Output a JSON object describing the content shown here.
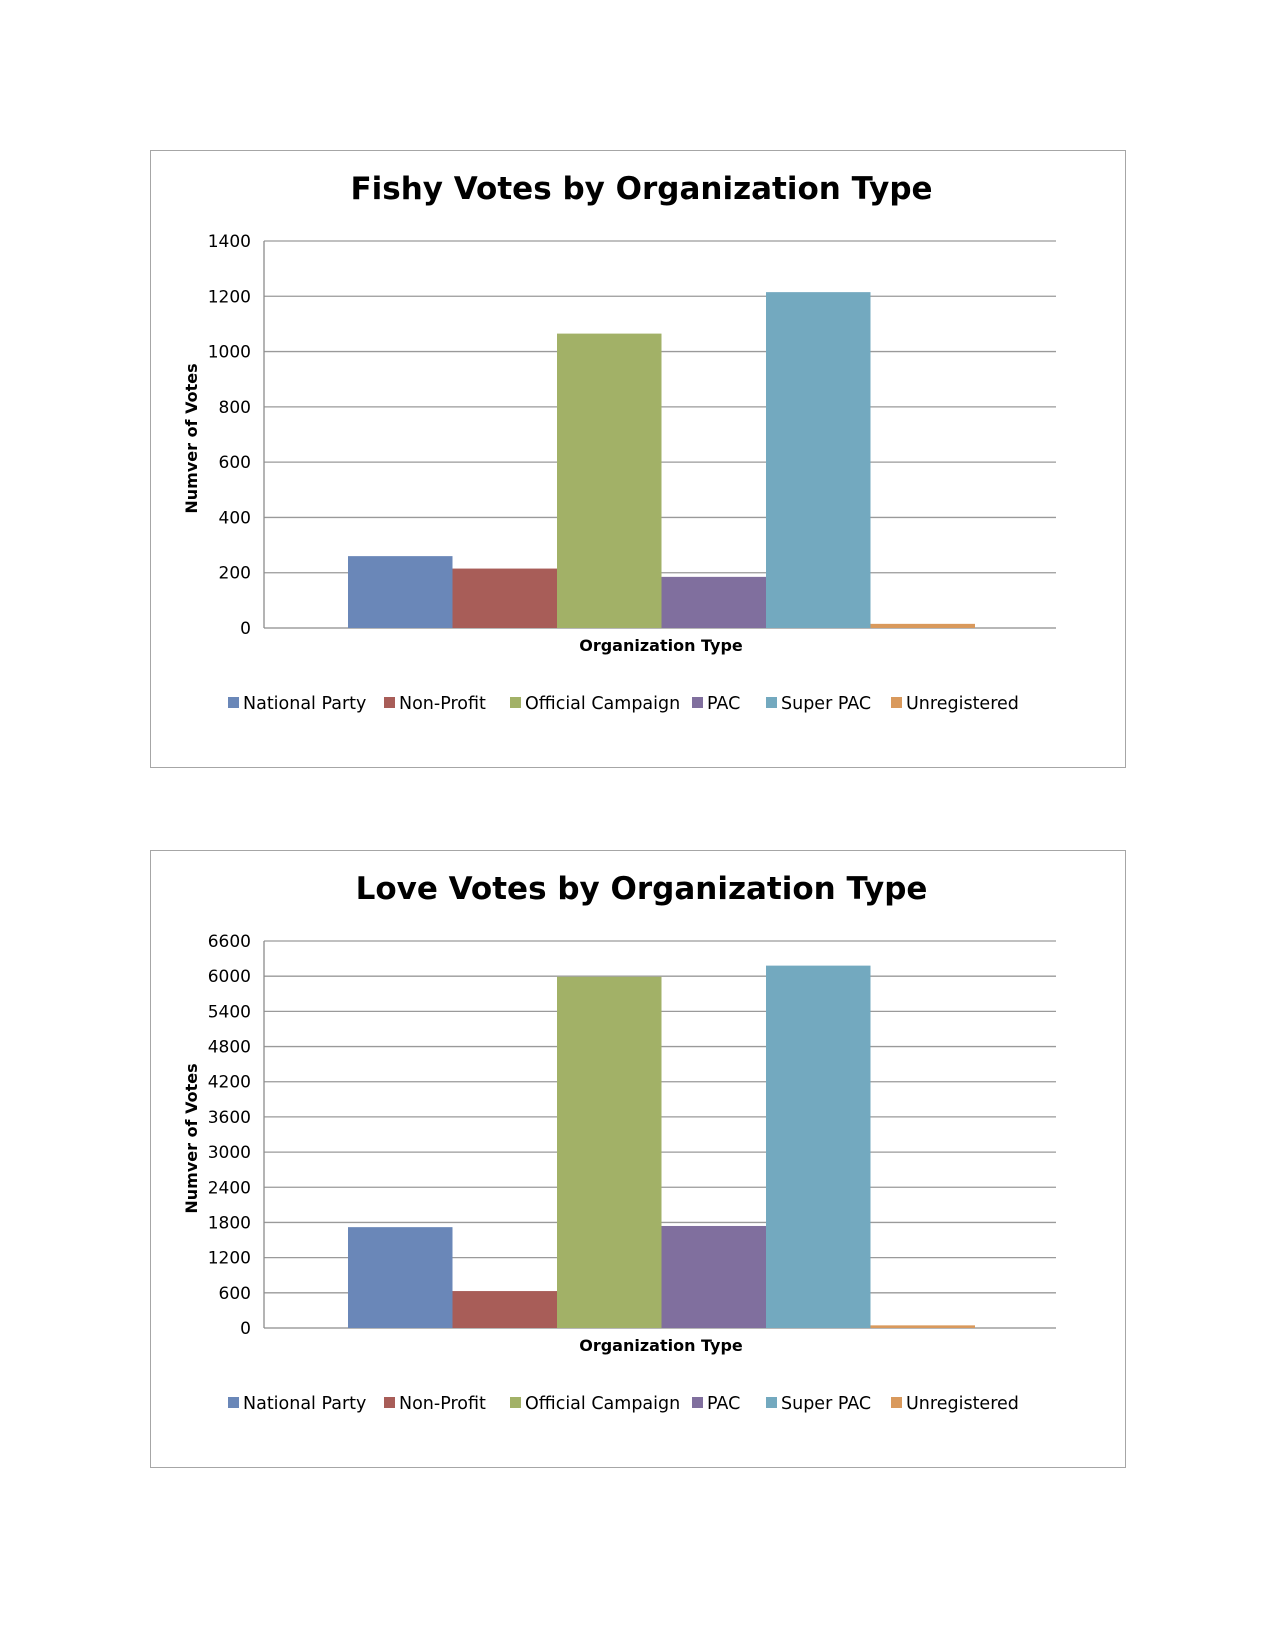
{
  "chart_data": [
    {
      "type": "bar",
      "title": "Fishy Votes by Organization Type",
      "xlabel": "Organization Type",
      "ylabel": "Numver of Votes",
      "ylim": [
        0,
        1400
      ],
      "yticks": [
        "0",
        "200",
        "400",
        "600",
        "800",
        "1000",
        "1200",
        "1400"
      ],
      "grid": true,
      "legend_position": "bottom",
      "series": [
        {
          "name": "National Party",
          "values": [
            260
          ],
          "color": "#6a87b8"
        },
        {
          "name": "Non-Profit",
          "values": [
            215
          ],
          "color": "#a85d58"
        },
        {
          "name": "Official Campaign",
          "values": [
            1065
          ],
          "color": "#a2b167"
        },
        {
          "name": "PAC",
          "values": [
            185
          ],
          "color": "#806f9e"
        },
        {
          "name": "Super PAC",
          "values": [
            1215
          ],
          "color": "#73a9bf"
        },
        {
          "name": "Unregistered",
          "values": [
            15
          ],
          "color": "#d9995c"
        }
      ]
    },
    {
      "type": "bar",
      "title": "Love Votes by Organization Type",
      "xlabel": "Organization Type",
      "ylabel": "Numver of Votes",
      "ylim": [
        0,
        6600
      ],
      "yticks": [
        "0",
        "600",
        "1200",
        "1800",
        "2400",
        "3000",
        "3600",
        "4200",
        "4800",
        "5400",
        "6000",
        "6600"
      ],
      "grid": true,
      "legend_position": "bottom",
      "series": [
        {
          "name": "National Party",
          "values": [
            1720
          ],
          "color": "#6a87b8"
        },
        {
          "name": "Non-Profit",
          "values": [
            630
          ],
          "color": "#a85d58"
        },
        {
          "name": "Official Campaign",
          "values": [
            5990
          ],
          "color": "#a2b167"
        },
        {
          "name": "PAC",
          "values": [
            1740
          ],
          "color": "#806f9e"
        },
        {
          "name": "Super PAC",
          "values": [
            6180
          ],
          "color": "#73a9bf"
        },
        {
          "name": "Unregistered",
          "values": [
            45
          ],
          "color": "#d9995c"
        }
      ]
    }
  ]
}
